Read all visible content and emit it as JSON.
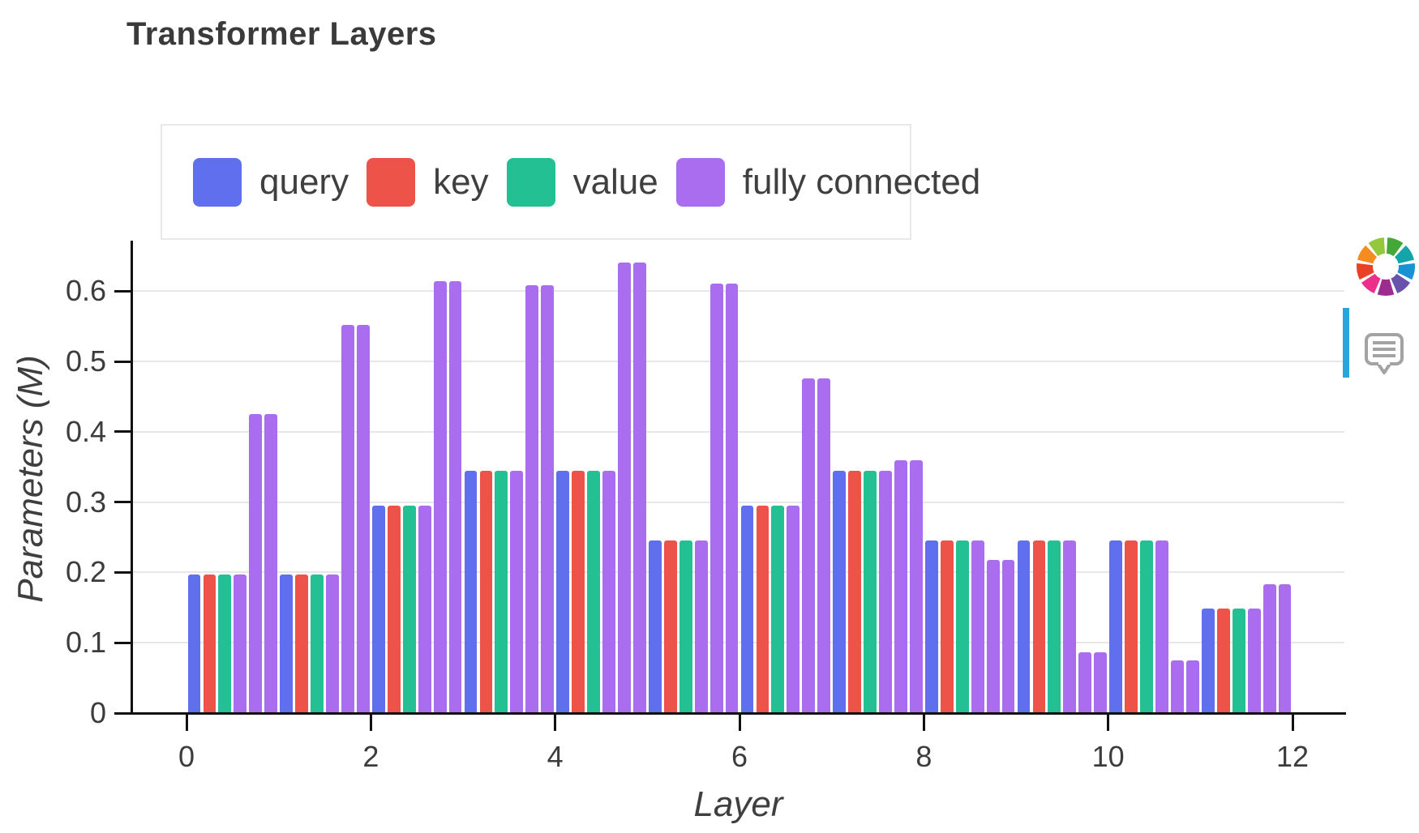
{
  "title": "Transformer Layers",
  "legend": {
    "items": [
      {
        "label": "query",
        "color": "#5f6fee"
      },
      {
        "label": "key",
        "color": "#ee5349"
      },
      {
        "label": "value",
        "color": "#22c093"
      },
      {
        "label": "fully connected",
        "color": "#ab6df0"
      }
    ]
  },
  "chart_data": {
    "type": "bar",
    "title": "Transformer Layers",
    "xlabel": "Layer",
    "ylabel": "Parameters (M)",
    "categories": [
      0,
      1,
      2,
      3,
      4,
      5,
      6,
      7,
      8,
      9,
      10,
      11
    ],
    "series": [
      {
        "name": "query",
        "color": "#5f6fee",
        "values": [
          0.197,
          0.197,
          0.295,
          0.344,
          0.344,
          0.246,
          0.295,
          0.344,
          0.246,
          0.246,
          0.246,
          0.149
        ]
      },
      {
        "name": "key",
        "color": "#ee5349",
        "values": [
          0.197,
          0.197,
          0.295,
          0.344,
          0.344,
          0.246,
          0.295,
          0.344,
          0.246,
          0.246,
          0.246,
          0.149
        ]
      },
      {
        "name": "value",
        "color": "#22c093",
        "values": [
          0.197,
          0.197,
          0.295,
          0.344,
          0.344,
          0.246,
          0.295,
          0.344,
          0.246,
          0.246,
          0.246,
          0.149
        ]
      },
      {
        "name": "fully connected",
        "color": "#ab6df0",
        "note": "three bars per group: attention-output-sized bar plus two equal fc bars",
        "values": [
          [
            0.197,
            0.425,
            0.425
          ],
          [
            0.197,
            0.552,
            0.552
          ],
          [
            0.295,
            0.614,
            0.614
          ],
          [
            0.344,
            0.609,
            0.609
          ],
          [
            0.344,
            0.641,
            0.641
          ],
          [
            0.246,
            0.611,
            0.611
          ],
          [
            0.295,
            0.476,
            0.476
          ],
          [
            0.344,
            0.359,
            0.359
          ],
          [
            0.246,
            0.218,
            0.218
          ],
          [
            0.246,
            0.087,
            0.087
          ],
          [
            0.246,
            0.075,
            0.075
          ],
          [
            0.149,
            0.183,
            0.183
          ]
        ]
      }
    ],
    "x_ticks": [
      {
        "v": 0,
        "label": "0"
      },
      {
        "v": 2,
        "label": "2"
      },
      {
        "v": 4,
        "label": "4"
      },
      {
        "v": 6,
        "label": "6"
      },
      {
        "v": 8,
        "label": "8"
      },
      {
        "v": 10,
        "label": "10"
      },
      {
        "v": 12,
        "label": "12"
      }
    ],
    "y_ticks": [
      {
        "v": 0,
        "label": "0"
      },
      {
        "v": 0.1,
        "label": "0.1"
      },
      {
        "v": 0.2,
        "label": "0.2"
      },
      {
        "v": 0.3,
        "label": "0.3"
      },
      {
        "v": 0.4,
        "label": "0.4"
      },
      {
        "v": 0.5,
        "label": "0.5"
      },
      {
        "v": 0.6,
        "label": "0.6"
      }
    ],
    "ylim": [
      0,
      0.672
    ],
    "grid": true,
    "legend_position": "top"
  },
  "toolbar": {
    "active_color": "#26a6dc",
    "tools": [
      "hover"
    ],
    "logo_colors": [
      "#44a838",
      "#14a5ab",
      "#1593d2",
      "#6a52ab",
      "#9c2c90",
      "#ed2f8c",
      "#ea4025",
      "#f68b1f",
      "#93c83d"
    ]
  }
}
